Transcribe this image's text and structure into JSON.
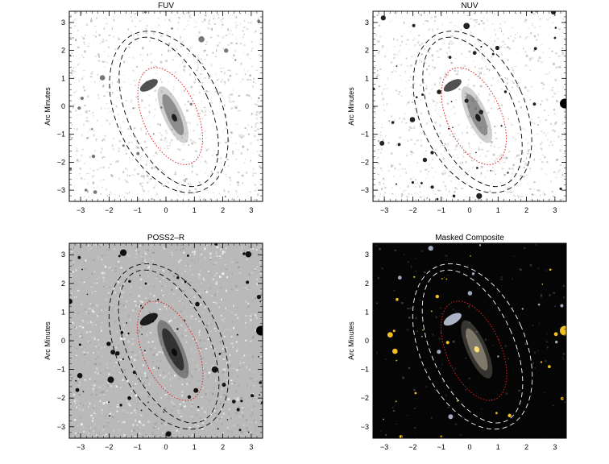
{
  "panels": [
    {
      "title": "FUV",
      "ylabel": "Arc Minutes",
      "style": "light"
    },
    {
      "title": "NUV",
      "ylabel": "Arc Minutes",
      "style": "light"
    },
    {
      "title": "POSS2–R",
      "ylabel": "Arc Minutes",
      "style": "grey"
    },
    {
      "title": "Masked Composite",
      "ylabel": "Arc Minutes",
      "style": "dark"
    }
  ],
  "axis": {
    "range": [
      -3.4,
      3.4
    ],
    "ticks": [
      -3,
      -2,
      -1,
      0,
      1,
      2,
      3
    ],
    "tick_labels": [
      "−3",
      "−2",
      "−1",
      "0",
      "1",
      "2",
      "3"
    ]
  },
  "ellipses": {
    "center": [
      0.1,
      -0.2
    ],
    "inner_red": {
      "a": 1.85,
      "b": 0.95,
      "rotation_deg": -24
    },
    "outer_1": {
      "a": 2.85,
      "b": 1.45,
      "rotation_deg": -24
    },
    "outer_2": {
      "a": 3.05,
      "b": 1.85,
      "rotation_deg": -24
    }
  },
  "colors": {
    "inner_ellipse": "#e02020",
    "outer_ellipse_light": "#000000",
    "outer_ellipse_dark": "#ffffff",
    "composite_stars": "#f0c020"
  }
}
